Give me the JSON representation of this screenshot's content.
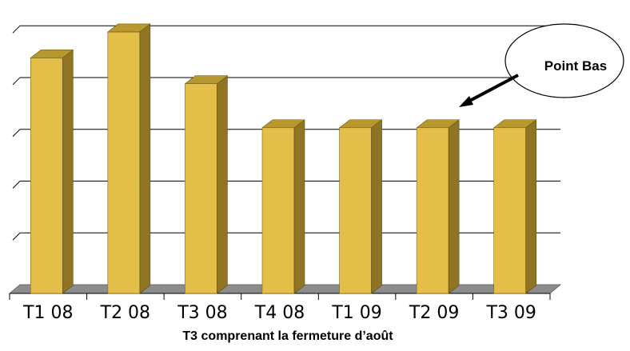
{
  "chart_data": {
    "type": "bar",
    "categories": [
      "T1 08",
      "T2 08",
      "T3 08",
      "T4 08",
      "T1 09",
      "T2 09",
      "T3 09"
    ],
    "values": [
      4.55,
      5.05,
      4.05,
      3.2,
      3.2,
      3.2,
      3.2
    ],
    "ylim": [
      0,
      5.25
    ],
    "y_ticks": [
      0,
      1,
      2,
      3,
      4,
      5
    ],
    "y_tick_labels_shown": false,
    "grid": true,
    "bar_style": "3d",
    "xlabel": "T3 comprenant la fermeture d’août",
    "annotation": {
      "text": "Point Bas",
      "target_category": "T2 09"
    },
    "colors": {
      "bar_front": "#e3bf4a",
      "bar_side": "#8f7424",
      "bar_top": "#b8972e",
      "floor": "#8c8c8c",
      "grid": "#000000"
    }
  }
}
